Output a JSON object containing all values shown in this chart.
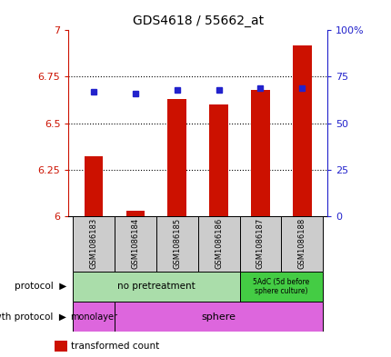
{
  "title": "GDS4618 / 55662_at",
  "samples": [
    "GSM1086183",
    "GSM1086184",
    "GSM1086185",
    "GSM1086186",
    "GSM1086187",
    "GSM1086188"
  ],
  "transformed_counts": [
    6.32,
    6.03,
    6.63,
    6.6,
    6.68,
    6.92
  ],
  "percentile_ranks": [
    67,
    66,
    68,
    68,
    69,
    69
  ],
  "ylim_left": [
    6.0,
    7.0
  ],
  "ylim_right": [
    0,
    100
  ],
  "yticks_left": [
    6.0,
    6.25,
    6.5,
    6.75,
    7.0
  ],
  "yticks_right": [
    0,
    25,
    50,
    75,
    100
  ],
  "ytick_labels_left": [
    "6",
    "6.25",
    "6.5",
    "6.75",
    "7"
  ],
  "ytick_labels_right": [
    "0",
    "25",
    "50",
    "75",
    "100%"
  ],
  "bar_color": "#cc1100",
  "dot_color": "#2222cc",
  "background_color": "#ffffff",
  "protocol_no_pretreat_color": "#aaddaa",
  "protocol_5adc_color": "#44cc44",
  "growth_monolayer_color": "#dd66dd",
  "growth_sphere_color": "#dd66dd",
  "sample_bg_color": "#cccccc",
  "left_axis_color": "#cc1100",
  "right_axis_color": "#2222cc",
  "grid_dotted_color": "#000000",
  "bar_width": 0.45
}
